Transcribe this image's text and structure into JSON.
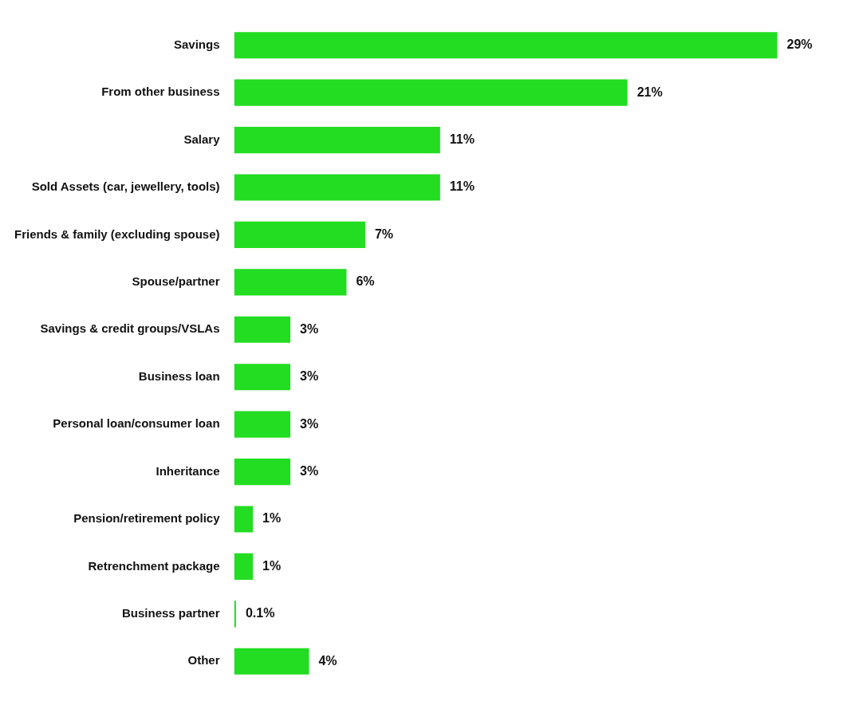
{
  "chart_data": {
    "type": "bar",
    "orientation": "horizontal",
    "categories": [
      "Savings",
      "From other business",
      "Salary",
      "Sold Assets (car, jewellery, tools)",
      "Friends & family (excluding spouse)",
      "Spouse/partner",
      "Savings & credit groups/VSLAs",
      "Business loan",
      "Personal loan/consumer loan",
      "Inheritance",
      "Pension/retirement policy",
      "Retrenchment package",
      "Business partner",
      "Other"
    ],
    "values": [
      29,
      21,
      11,
      11,
      7,
      6,
      3,
      3,
      3,
      3,
      1,
      1,
      0.1,
      4
    ],
    "value_labels": [
      "29%",
      "21%",
      "11%",
      "11%",
      "7%",
      "6%",
      "3%",
      "3%",
      "3%",
      "3%",
      "1%",
      "1%",
      "0.1%",
      "4%"
    ],
    "color": "#22dd22",
    "grid": false,
    "legend": false
  }
}
